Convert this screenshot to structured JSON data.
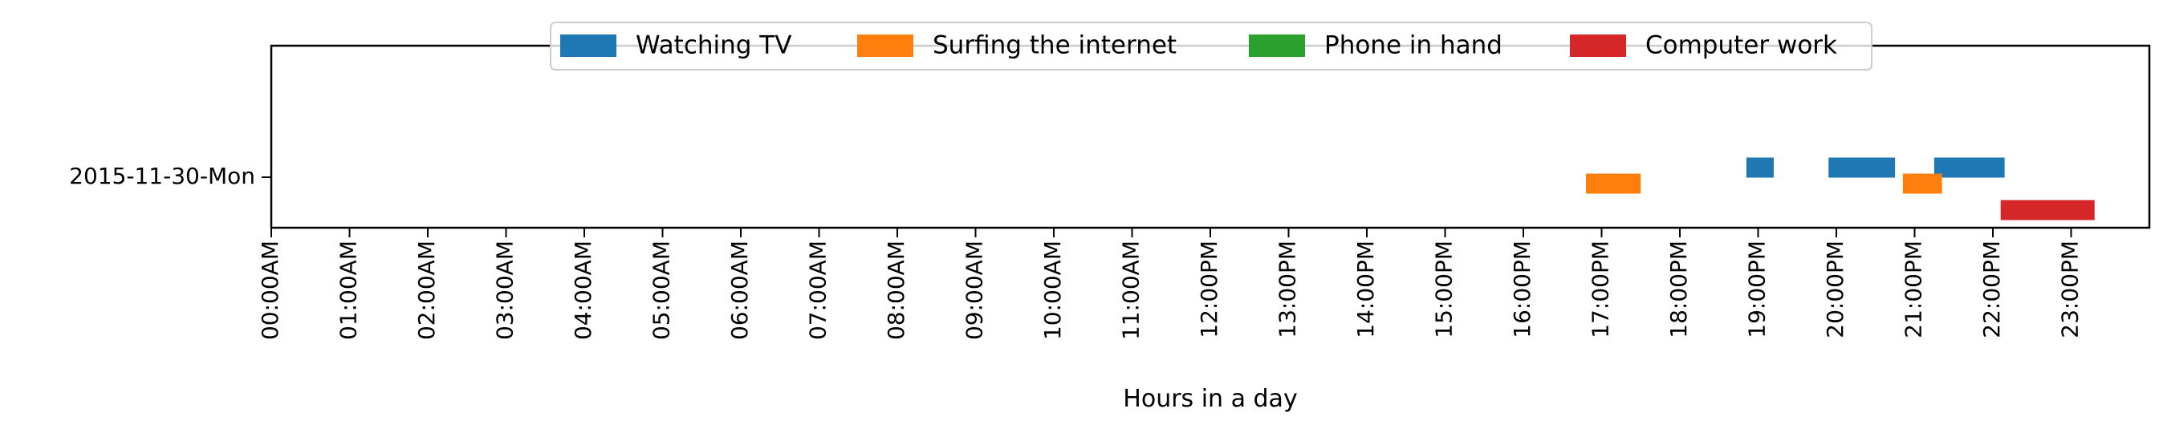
{
  "chart_data": {
    "type": "timeline",
    "xlabel": "Hours in a day",
    "xlim": [
      0,
      24
    ],
    "x_ticks": [
      "00:00AM",
      "01:00AM",
      "02:00AM",
      "03:00AM",
      "04:00AM",
      "05:00AM",
      "06:00AM",
      "07:00AM",
      "08:00AM",
      "09:00AM",
      "10:00AM",
      "11:00AM",
      "12:00PM",
      "13:00PM",
      "14:00PM",
      "15:00PM",
      "16:00PM",
      "17:00PM",
      "18:00PM",
      "19:00PM",
      "20:00PM",
      "21:00PM",
      "22:00PM",
      "23:00PM"
    ],
    "categories": [
      "2015-11-30-Mon"
    ],
    "legend_position": "top-center",
    "series": [
      {
        "name": "Watching TV",
        "color": "#1f77b4",
        "segments": [
          [
            18.85,
            19.2
          ],
          [
            19.9,
            20.75
          ],
          [
            21.25,
            22.15
          ]
        ]
      },
      {
        "name": "Surfing the internet",
        "color": "#ff7f0e",
        "segments": [
          [
            16.8,
            17.5
          ],
          [
            20.85,
            21.35
          ]
        ]
      },
      {
        "name": "Phone in hand",
        "color": "#2ca02c",
        "segments": []
      },
      {
        "name": "Computer work",
        "color": "#d62728",
        "segments": [
          [
            22.1,
            23.3
          ]
        ]
      }
    ]
  }
}
